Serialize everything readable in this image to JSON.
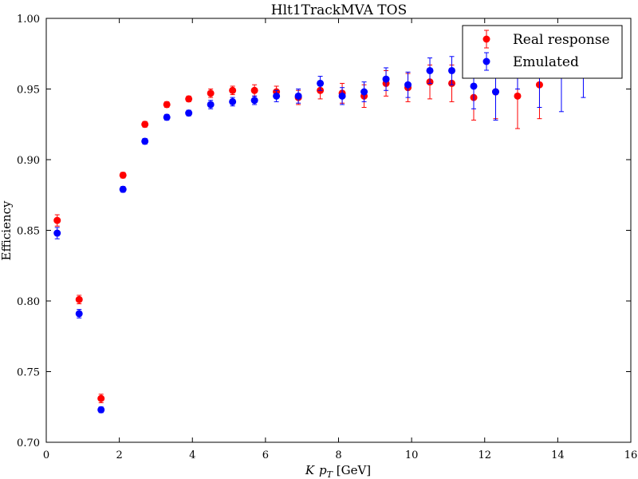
{
  "chart_data": {
    "type": "scatter",
    "title": "Hlt1TrackMVA TOS",
    "xlabel_parts": [
      "K",
      "p",
      "T",
      " [GeV]"
    ],
    "ylabel": "Efficiency",
    "xlim": [
      0,
      16
    ],
    "ylim": [
      0.7,
      1.0
    ],
    "xticks": [
      "0",
      "2",
      "4",
      "6",
      "8",
      "10",
      "12",
      "14",
      "16"
    ],
    "yticks": [
      "0.70",
      "0.75",
      "0.80",
      "0.85",
      "0.90",
      "0.95",
      "1.00"
    ],
    "grid": false,
    "legend_position": "top-right",
    "series": [
      {
        "name": "Real response",
        "color": "#ff0000",
        "points": [
          {
            "x": 0.3,
            "y": 0.857,
            "err": 0.004
          },
          {
            "x": 0.9,
            "y": 0.801,
            "err": 0.003
          },
          {
            "x": 1.5,
            "y": 0.731,
            "err": 0.003
          },
          {
            "x": 2.1,
            "y": 0.889,
            "err": 0.002
          },
          {
            "x": 2.7,
            "y": 0.925,
            "err": 0.002
          },
          {
            "x": 3.3,
            "y": 0.939,
            "err": 0.002
          },
          {
            "x": 3.9,
            "y": 0.943,
            "err": 0.002
          },
          {
            "x": 4.5,
            "y": 0.947,
            "err": 0.003
          },
          {
            "x": 5.1,
            "y": 0.949,
            "err": 0.003
          },
          {
            "x": 5.7,
            "y": 0.949,
            "err": 0.004
          },
          {
            "x": 6.3,
            "y": 0.948,
            "err": 0.004
          },
          {
            "x": 6.9,
            "y": 0.944,
            "err": 0.005
          },
          {
            "x": 7.5,
            "y": 0.949,
            "err": 0.006
          },
          {
            "x": 8.1,
            "y": 0.947,
            "err": 0.007
          },
          {
            "x": 8.7,
            "y": 0.945,
            "err": 0.008
          },
          {
            "x": 9.3,
            "y": 0.954,
            "err": 0.009
          },
          {
            "x": 9.9,
            "y": 0.951,
            "err": 0.01
          },
          {
            "x": 10.5,
            "y": 0.955,
            "err": 0.012
          },
          {
            "x": 11.1,
            "y": 0.954,
            "err": 0.013
          },
          {
            "x": 11.7,
            "y": 0.944,
            "err": 0.016
          },
          {
            "x": 12.3,
            "y": 0.948,
            "err": 0.019
          },
          {
            "x": 12.9,
            "y": 0.945,
            "err": 0.023
          },
          {
            "x": 13.5,
            "y": 0.953,
            "err": 0.024
          }
        ]
      },
      {
        "name": "Emulated",
        "color": "#0000ff",
        "points": [
          {
            "x": 0.3,
            "y": 0.848,
            "err": 0.004
          },
          {
            "x": 0.9,
            "y": 0.791,
            "err": 0.003
          },
          {
            "x": 1.5,
            "y": 0.723,
            "err": 0.002
          },
          {
            "x": 2.1,
            "y": 0.879,
            "err": 0.002
          },
          {
            "x": 2.7,
            "y": 0.913,
            "err": 0.002
          },
          {
            "x": 3.3,
            "y": 0.93,
            "err": 0.002
          },
          {
            "x": 3.9,
            "y": 0.933,
            "err": 0.002
          },
          {
            "x": 4.5,
            "y": 0.939,
            "err": 0.003
          },
          {
            "x": 5.1,
            "y": 0.941,
            "err": 0.003
          },
          {
            "x": 5.7,
            "y": 0.942,
            "err": 0.003
          },
          {
            "x": 6.3,
            "y": 0.945,
            "err": 0.004
          },
          {
            "x": 6.9,
            "y": 0.945,
            "err": 0.005
          },
          {
            "x": 7.5,
            "y": 0.954,
            "err": 0.005
          },
          {
            "x": 8.1,
            "y": 0.945,
            "err": 0.006
          },
          {
            "x": 8.7,
            "y": 0.948,
            "err": 0.007
          },
          {
            "x": 9.3,
            "y": 0.957,
            "err": 0.008
          },
          {
            "x": 9.9,
            "y": 0.953,
            "err": 0.009
          },
          {
            "x": 10.5,
            "y": 0.963,
            "err": 0.009
          },
          {
            "x": 11.1,
            "y": 0.963,
            "err": 0.01
          },
          {
            "x": 11.7,
            "y": 0.952,
            "err": 0.016
          },
          {
            "x": 12.3,
            "y": 0.948,
            "err": 0.02
          },
          {
            "x": 12.9,
            "y": 0.965,
            "err": 0.015
          },
          {
            "x": 13.5,
            "y": 0.962,
            "err": 0.025
          },
          {
            "x": 14.1,
            "y": 0.96,
            "err": 0.026
          },
          {
            "x": 14.7,
            "y": 0.966,
            "err": 0.022
          }
        ]
      }
    ]
  }
}
